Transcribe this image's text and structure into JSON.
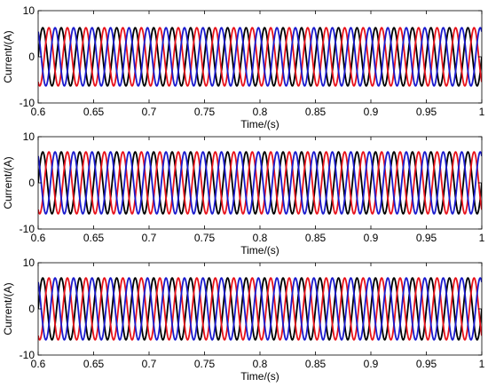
{
  "chart_data": [
    {
      "type": "line",
      "title": "",
      "xlabel": "Time/(s)",
      "ylabel": "Current/(A)",
      "xlim": [
        0.6,
        1.0
      ],
      "ylim": [
        -10,
        10
      ],
      "xticks": [
        "0.6",
        "0.65",
        "0.7",
        "0.75",
        "0.8",
        "0.85",
        "0.9",
        "0.95",
        "1"
      ],
      "yticks": [
        "-10",
        "0",
        "10"
      ],
      "grid": false,
      "legend": "none",
      "series": [
        {
          "color": "#000000",
          "amplitude": 6.3,
          "frequency_hz": 60,
          "phase_deg": 0
        },
        {
          "color": "#e8121b",
          "amplitude": 6.3,
          "frequency_hz": 60,
          "phase_deg": -120
        },
        {
          "color": "#1a1acd",
          "amplitude": 6.3,
          "frequency_hz": 60,
          "phase_deg": 120
        }
      ]
    },
    {
      "type": "line",
      "title": "",
      "xlabel": "Time/(s)",
      "ylabel": "Current/(A)",
      "xlim": [
        0.6,
        1.0
      ],
      "ylim": [
        -10,
        10
      ],
      "xticks": [
        "0.6",
        "0.65",
        "0.7",
        "0.75",
        "0.8",
        "0.85",
        "0.9",
        "0.95",
        "1"
      ],
      "yticks": [
        "-10",
        "0",
        "10"
      ],
      "grid": false,
      "legend": "none",
      "series": [
        {
          "color": "#000000",
          "amplitude": 6.7,
          "frequency_hz": 60,
          "phase_deg": 0
        },
        {
          "color": "#e8121b",
          "amplitude": 6.7,
          "frequency_hz": 60,
          "phase_deg": -120
        },
        {
          "color": "#1a1acd",
          "amplitude": 6.7,
          "frequency_hz": 60,
          "phase_deg": 120
        }
      ]
    },
    {
      "type": "line",
      "title": "",
      "xlabel": "Time/(s)",
      "ylabel": "Current/(A)",
      "xlim": [
        0.6,
        1.0
      ],
      "ylim": [
        -10,
        10
      ],
      "xticks": [
        "0.6",
        "0.65",
        "0.7",
        "0.75",
        "0.8",
        "0.85",
        "0.9",
        "0.95",
        "1"
      ],
      "yticks": [
        "-10",
        "0",
        "10"
      ],
      "grid": false,
      "legend": "none",
      "series": [
        {
          "color": "#000000",
          "amplitude": 6.7,
          "frequency_hz": 60,
          "phase_deg": 0
        },
        {
          "color": "#e8121b",
          "amplitude": 6.7,
          "frequency_hz": 60,
          "phase_deg": -120
        },
        {
          "color": "#1a1acd",
          "amplitude": 6.7,
          "frequency_hz": 60,
          "phase_deg": 120
        }
      ]
    }
  ]
}
